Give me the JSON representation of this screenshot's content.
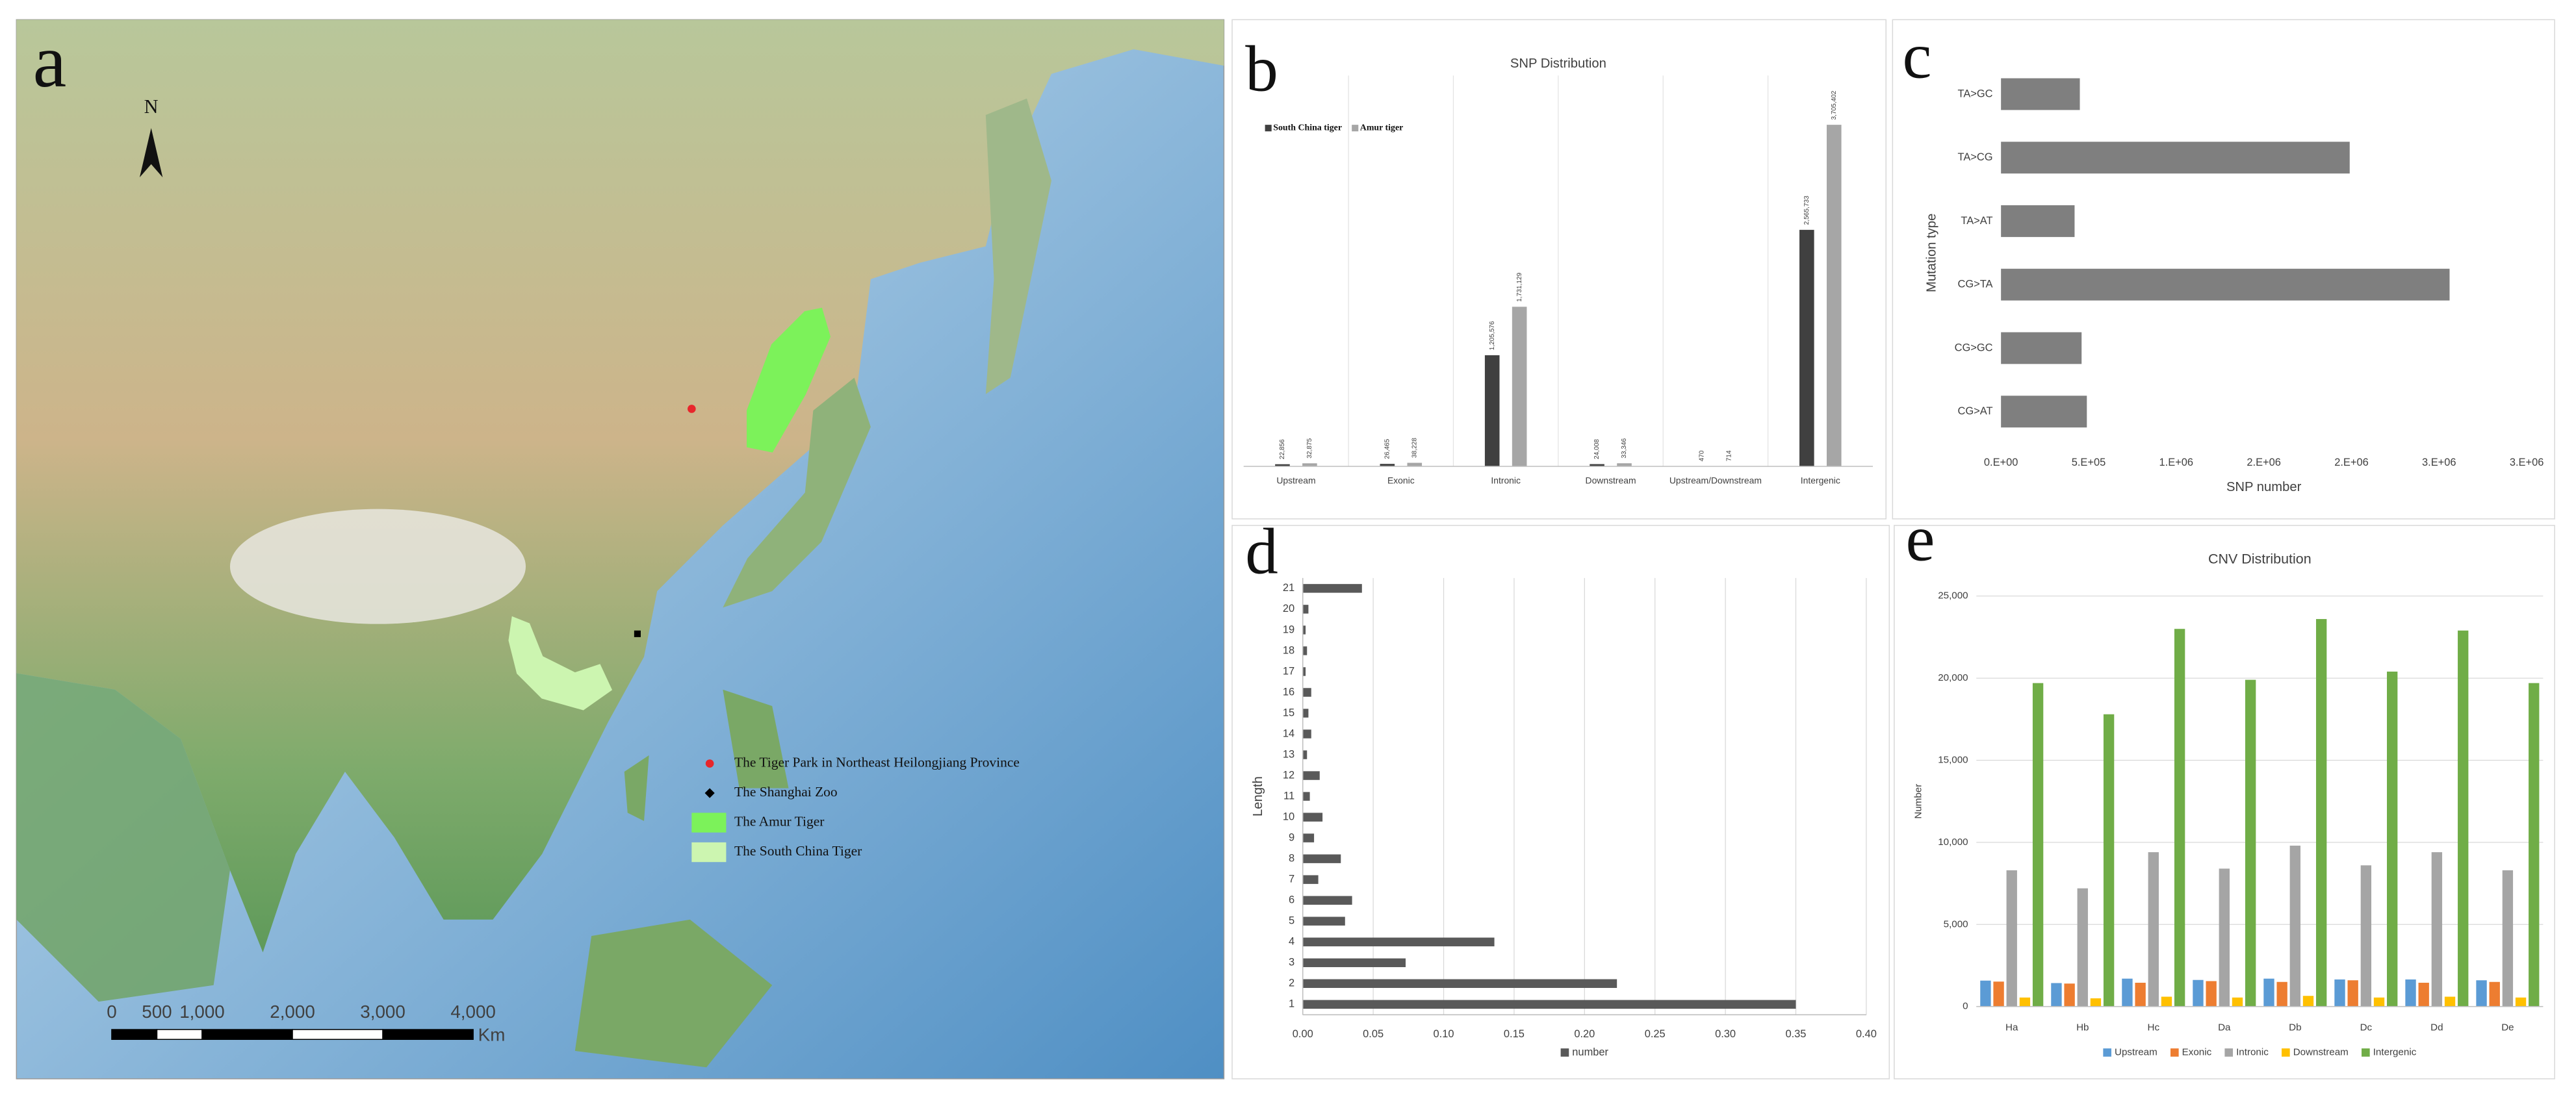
{
  "map": {
    "panel": "a",
    "north": "N",
    "scale_bar": {
      "ticks": [
        0,
        500,
        {
          "value": 1000,
          "label": "1,000"
        },
        {
          "value": 2000,
          "label": "2,000"
        },
        {
          "value": 3000,
          "label": "3,000"
        },
        {
          "value": 4000,
          "label": "4,000"
        }
      ],
      "unit": "Km"
    },
    "legend": [
      {
        "label": "The Tiger Park in Northeast Heilongjiang Province",
        "color": "#e8262b"
      },
      {
        "label": "The Shanghai Zoo",
        "color": "#000000"
      },
      {
        "label": "The Amur Tiger",
        "color": "#7cf25a"
      },
      {
        "label": "The South China Tiger",
        "color": "#ccf5b0"
      }
    ]
  },
  "chart_data": [
    {
      "panel": "b",
      "type": "bar",
      "title": "SNP Distribution",
      "categories": [
        "Upstream",
        "Exonic",
        "Intronic",
        "Downstream",
        "Upstream/Downstream",
        "Intergenic"
      ],
      "series": [
        {
          "name": "South China tiger",
          "color": "#404040",
          "values": [
            22856,
            26465,
            1205576,
            24008,
            470,
            2565733
          ],
          "value_labels": [
            "22,856",
            "26,465",
            "1,205,576",
            "24,008",
            "470",
            "2,565,733"
          ]
        },
        {
          "name": "Amur tiger",
          "color": "#a6a6a6",
          "values": [
            32875,
            38228,
            1731129,
            33346,
            714,
            3705402
          ],
          "value_labels": [
            "32,875",
            "38,228",
            "1,731,129",
            "33,346",
            "714",
            "3,705,402"
          ]
        }
      ],
      "legend": "top-left"
    },
    {
      "panel": "c",
      "type": "hbar",
      "categories": [
        "CG>AT",
        "CG>GC",
        "CG>TA",
        "TA>AT",
        "TA>CG",
        "TA>GC"
      ],
      "values": [
        490000,
        460000,
        2560000,
        420000,
        1990000,
        450000
      ],
      "color": "#7f7f7f",
      "xlim": [
        0,
        3000000
      ],
      "xticks": [
        {
          "value": 0,
          "label": "0.E+00"
        },
        {
          "value": 500000,
          "label": "5.E+05"
        },
        {
          "value": 1000000,
          "label": "1.E+06"
        },
        {
          "value": 1500000,
          "label": "2.E+06"
        },
        {
          "value": 2000000,
          "label": "2.E+06"
        },
        {
          "value": 2500000,
          "label": "3.E+06"
        },
        {
          "value": 3000000,
          "label": "3.E+06"
        }
      ],
      "xlabel": "SNP number",
      "ylabel": "Mutation type",
      "grid": false
    },
    {
      "panel": "d",
      "type": "hbar",
      "categories": [
        "1",
        "2",
        "3",
        "4",
        "5",
        "6",
        "7",
        "8",
        "9",
        "10",
        "11",
        "12",
        "13",
        "14",
        "15",
        "16",
        "17",
        "18",
        "19",
        "20",
        "21"
      ],
      "series": [
        {
          "name": "number",
          "color": "#595959",
          "values": [
            0.35,
            0.223,
            0.073,
            0.136,
            0.03,
            0.035,
            0.011,
            0.027,
            0.008,
            0.014,
            0.005,
            0.012,
            0.003,
            0.006,
            0.004,
            0.006,
            0.002,
            0.003,
            0.002,
            0.004,
            0.042
          ]
        }
      ],
      "xlim": [
        0,
        0.4
      ],
      "xticks": [
        {
          "value": 0,
          "label": "0.00"
        },
        0.05,
        {
          "value": 0.1,
          "label": "0.10"
        },
        0.15,
        {
          "value": 0.2,
          "label": "0.20"
        },
        0.25,
        {
          "value": 0.3,
          "label": "0.30"
        },
        0.35,
        {
          "value": 0.4,
          "label": "0.40"
        }
      ],
      "ylabel": "Length",
      "grid": true,
      "legend": "bottom"
    },
    {
      "panel": "e",
      "type": "bar",
      "title": "CNV Distribution",
      "categories": [
        "Ha",
        "Hb",
        "Hc",
        "Da",
        "Db",
        "Dc",
        "Dd",
        "De"
      ],
      "series": [
        {
          "name": "Upstream",
          "color": "#5b9bd5",
          "values": [
            1580,
            1430,
            1700,
            1620,
            1700,
            1650,
            1650,
            1600
          ]
        },
        {
          "name": "Exonic",
          "color": "#ed7d31",
          "values": [
            1520,
            1400,
            1450,
            1550,
            1500,
            1600,
            1450,
            1500
          ]
        },
        {
          "name": "Intronic",
          "color": "#a5a5a5",
          "values": [
            8300,
            7200,
            9400,
            8400,
            9800,
            8600,
            9400,
            8300
          ]
        },
        {
          "name": "Downstream",
          "color": "#ffc000",
          "values": [
            550,
            500,
            600,
            550,
            650,
            550,
            600,
            550
          ]
        },
        {
          "name": "Intergenic",
          "color": "#70ad47",
          "values": [
            19700,
            17800,
            23000,
            19900,
            23600,
            20400,
            22900,
            19700
          ]
        }
      ],
      "ylim": [
        0,
        25000
      ],
      "yticks": [
        0,
        {
          "value": 5000,
          "label": "5,000"
        },
        {
          "value": 10000,
          "label": "10,000"
        },
        {
          "value": 15000,
          "label": "15,000"
        },
        {
          "value": 20000,
          "label": "20,000"
        },
        {
          "value": 25000,
          "label": "25,000"
        }
      ],
      "ylabel": "Number",
      "grid": true,
      "legend": "bottom"
    }
  ]
}
